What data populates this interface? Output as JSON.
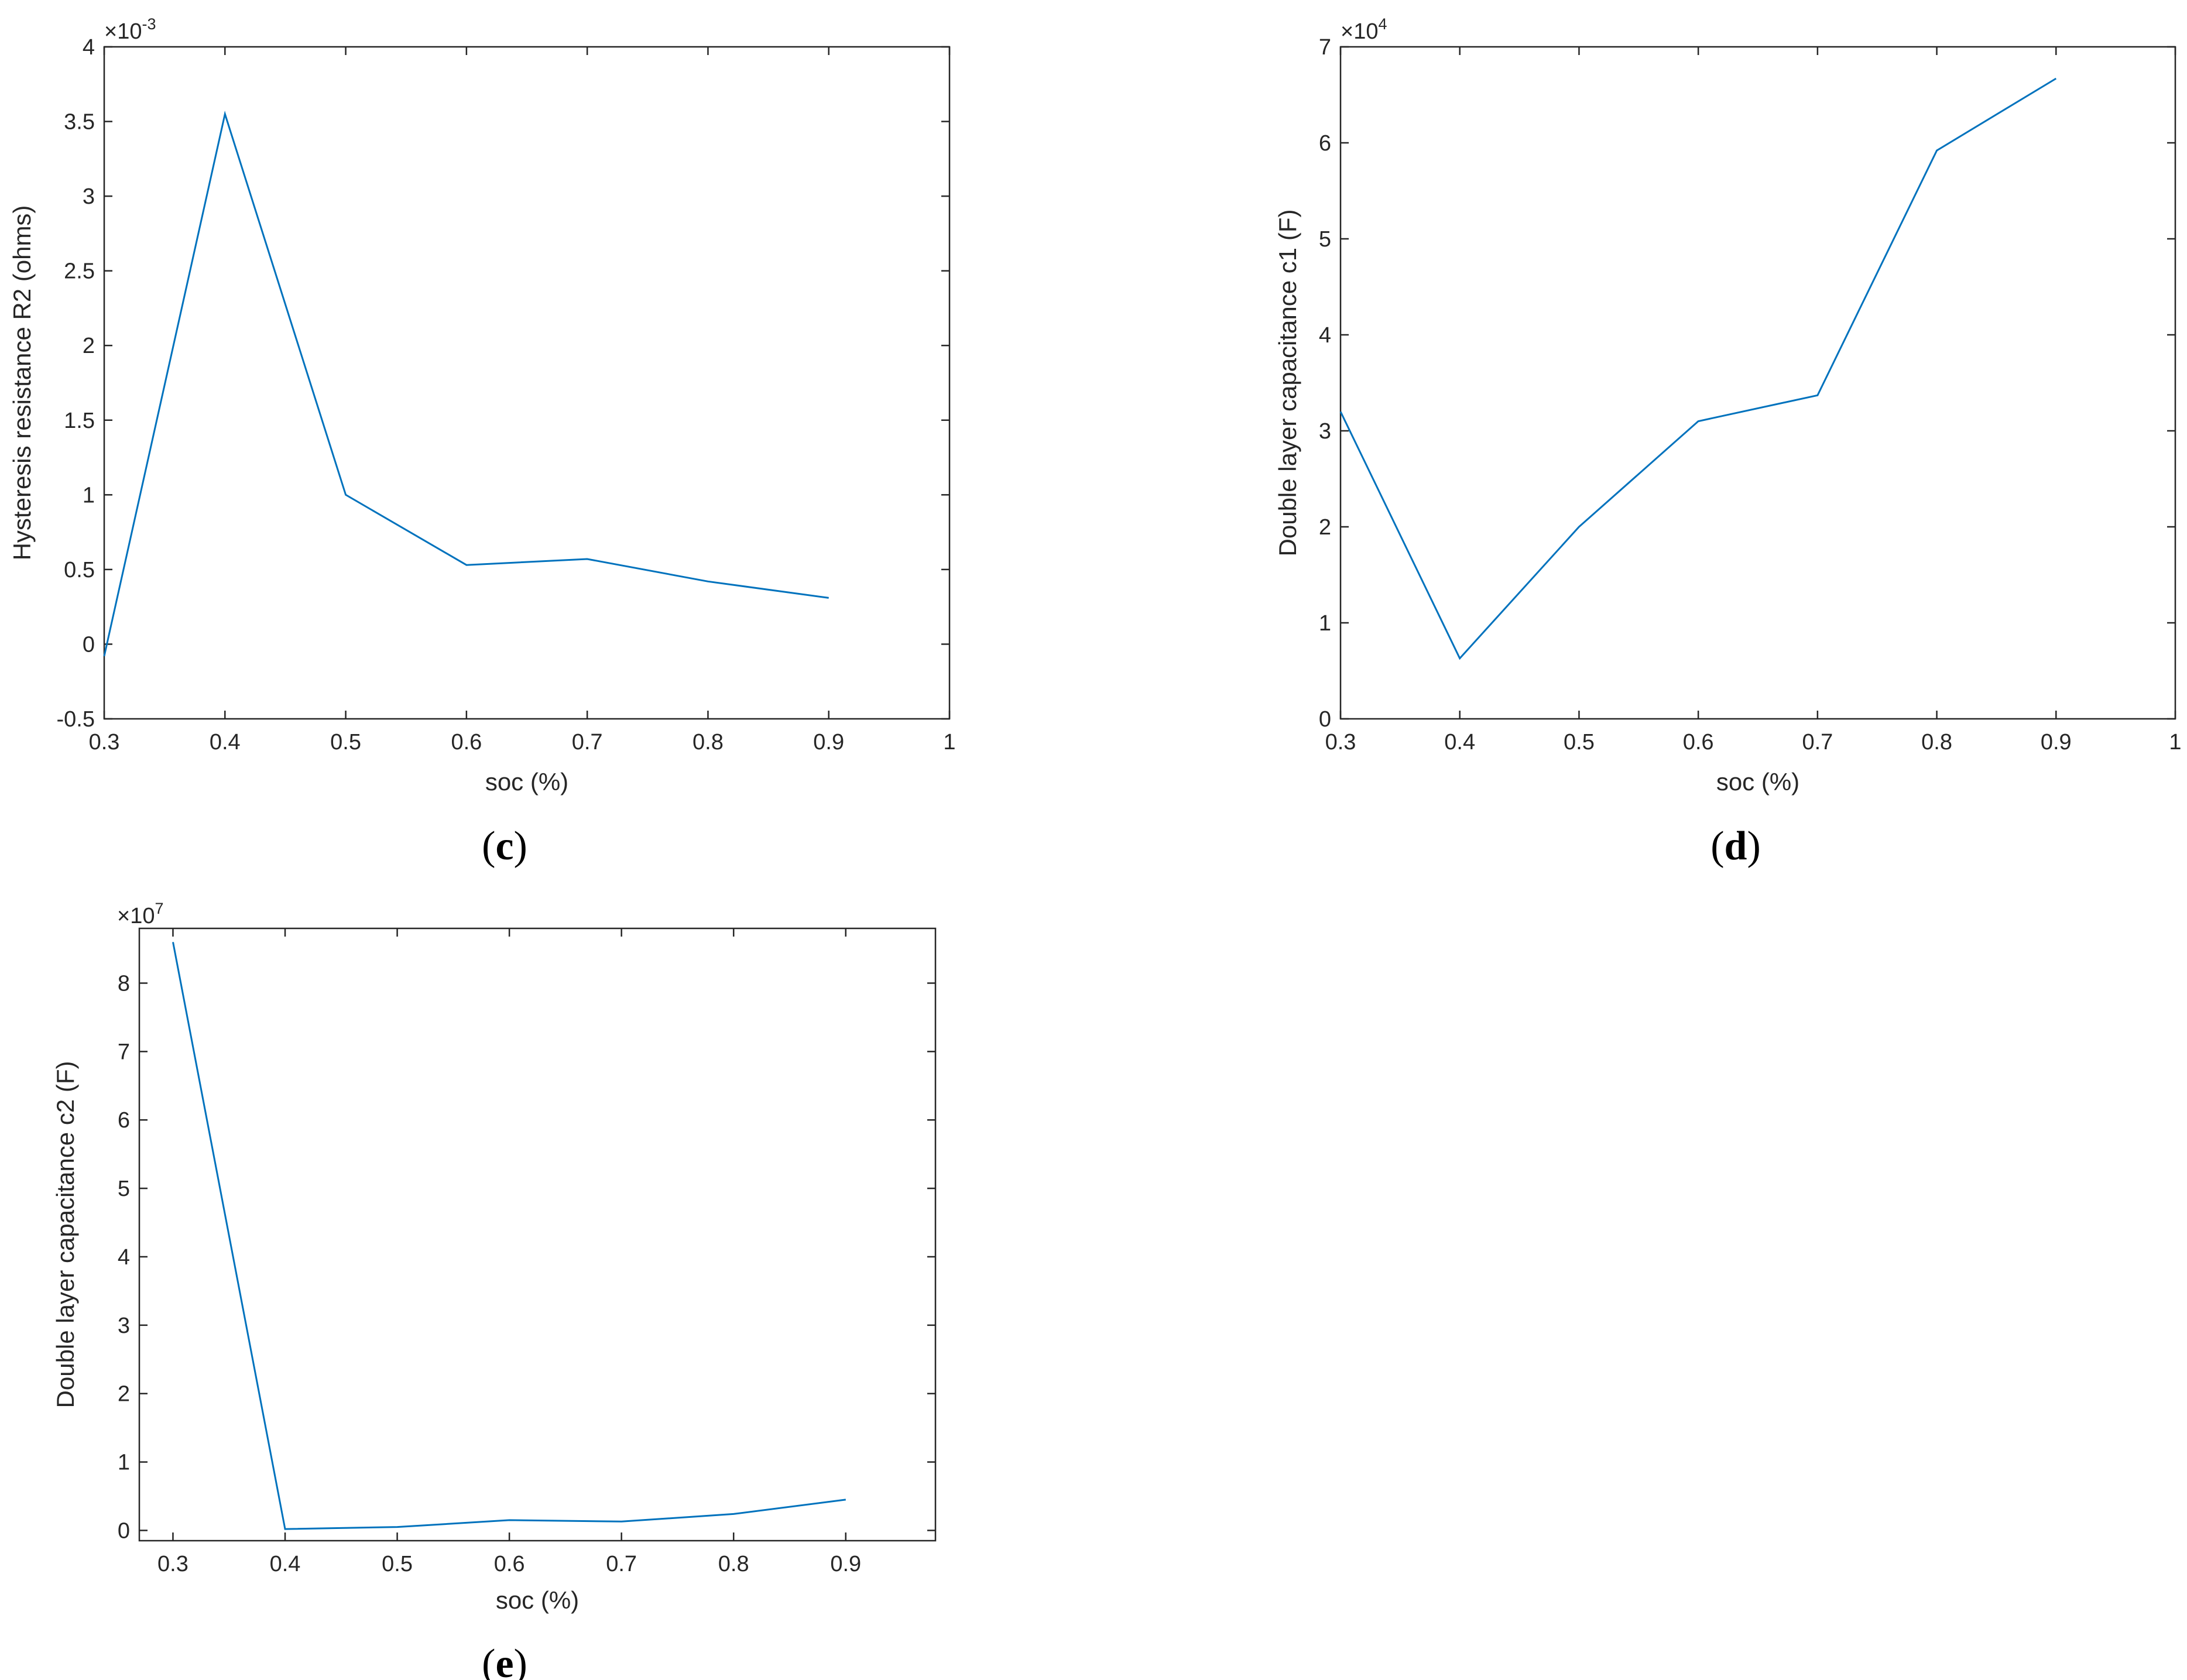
{
  "colors": {
    "series": "#0072BD",
    "axis": "#262626",
    "background": "#ffffff"
  },
  "chart_data": [
    {
      "panel": "c",
      "caption": "c",
      "type": "line",
      "title": "",
      "xlabel": "soc (%)",
      "ylabel": "Hysteresis resistance R2 (ohms)",
      "exponent_base": "×10",
      "exponent_power": "-3",
      "xlim": [
        0.3,
        1.0
      ],
      "ylim": [
        -0.5,
        4.0
      ],
      "xticks": [
        0.3,
        0.4,
        0.5,
        0.6,
        0.7,
        0.8,
        0.9,
        1.0
      ],
      "xtick_labels": [
        "0.3",
        "0.4",
        "0.5",
        "0.6",
        "0.7",
        "0.8",
        "0.9",
        "1"
      ],
      "yticks": [
        -0.5,
        0,
        0.5,
        1,
        1.5,
        2,
        2.5,
        3,
        3.5,
        4
      ],
      "ytick_labels": [
        "-0.5",
        "0",
        "0.5",
        "1",
        "1.5",
        "2",
        "2.5",
        "3",
        "3.5",
        "4"
      ],
      "grid": false,
      "series": [
        {
          "x": [
            0.3,
            0.4,
            0.5,
            0.6,
            0.7,
            0.8,
            0.9
          ],
          "y": [
            -0.08,
            3.55,
            1.0,
            0.53,
            0.57,
            0.42,
            0.31
          ]
        }
      ]
    },
    {
      "panel": "d",
      "caption": "d",
      "type": "line",
      "title": "",
      "xlabel": "soc (%)",
      "ylabel": "Double layer capacitance c1 (F)",
      "exponent_base": "×10",
      "exponent_power": "4",
      "xlim": [
        0.3,
        1.0
      ],
      "ylim": [
        0,
        7
      ],
      "xticks": [
        0.3,
        0.4,
        0.5,
        0.6,
        0.7,
        0.8,
        0.9,
        1.0
      ],
      "xtick_labels": [
        "0.3",
        "0.4",
        "0.5",
        "0.6",
        "0.7",
        "0.8",
        "0.9",
        "1"
      ],
      "yticks": [
        0,
        1,
        2,
        3,
        4,
        5,
        6,
        7
      ],
      "ytick_labels": [
        "0",
        "1",
        "2",
        "3",
        "4",
        "5",
        "6",
        "7"
      ],
      "grid": false,
      "series": [
        {
          "x": [
            0.3,
            0.4,
            0.5,
            0.6,
            0.7,
            0.8,
            0.9
          ],
          "y": [
            3.2,
            0.63,
            2.0,
            3.1,
            3.37,
            5.92,
            6.67
          ]
        }
      ]
    },
    {
      "panel": "e",
      "caption": "e",
      "type": "line",
      "title": "",
      "xlabel": "soc (%)",
      "ylabel": "Double layer capacitance c2 (F)",
      "exponent_base": "×10",
      "exponent_power": "7",
      "xlim": [
        0.27,
        0.98
      ],
      "ylim": [
        -0.15,
        8.8
      ],
      "xticks": [
        0.3,
        0.4,
        0.5,
        0.6,
        0.7,
        0.8,
        0.9
      ],
      "xtick_labels": [
        "0.3",
        "0.4",
        "0.5",
        "0.6",
        "0.7",
        "0.8",
        "0.9"
      ],
      "yticks": [
        0,
        1,
        2,
        3,
        4,
        5,
        6,
        7,
        8
      ],
      "ytick_labels": [
        "0",
        "1",
        "2",
        "3",
        "4",
        "5",
        "6",
        "7",
        "8"
      ],
      "grid": false,
      "series": [
        {
          "x": [
            0.3,
            0.4,
            0.5,
            0.6,
            0.7,
            0.8,
            0.9
          ],
          "y": [
            8.6,
            0.02,
            0.05,
            0.15,
            0.13,
            0.24,
            0.45
          ]
        }
      ]
    }
  ]
}
